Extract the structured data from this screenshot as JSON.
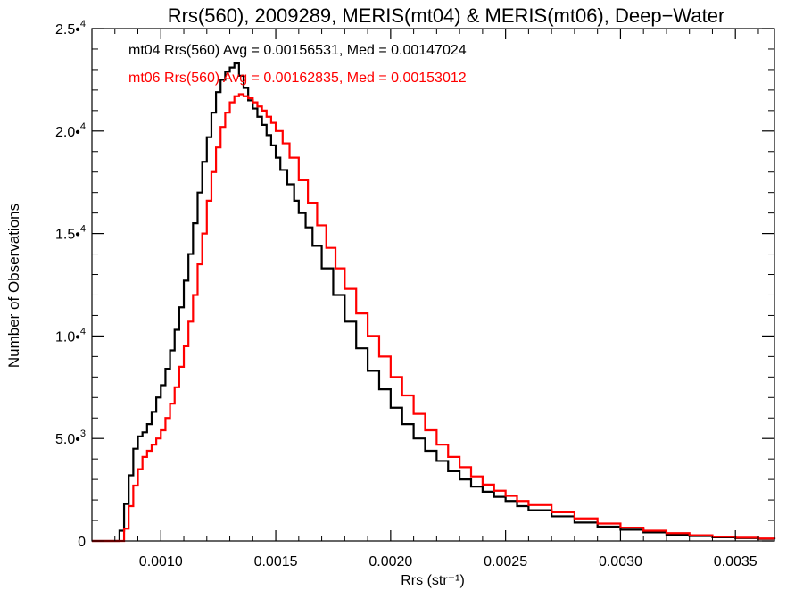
{
  "chart_data": {
    "type": "line",
    "title": "Rrs(560), 2009289, MERIS(mt04) & MERIS(mt06), Deep−Water",
    "xlabel": "Rrs (str⁻¹)",
    "ylabel": "Number of Observations",
    "xlim": [
      0.0007,
      0.00367
    ],
    "ylim": [
      0,
      25000
    ],
    "x_ticks": [
      {
        "value": 0.001,
        "label": "0.0010"
      },
      {
        "value": 0.0015,
        "label": "0.0015"
      },
      {
        "value": 0.002,
        "label": "0.0020"
      },
      {
        "value": 0.0025,
        "label": "0.0025"
      },
      {
        "value": 0.003,
        "label": "0.0030"
      },
      {
        "value": 0.0035,
        "label": "0.0035"
      }
    ],
    "y_ticks": [
      {
        "value": 0,
        "mantissa": "0",
        "exponent": ""
      },
      {
        "value": 5000,
        "mantissa": "5.0•",
        "exponent": "3"
      },
      {
        "value": 10000,
        "mantissa": "1.0•",
        "exponent": "4"
      },
      {
        "value": 15000,
        "mantissa": "1.5•",
        "exponent": "4"
      },
      {
        "value": 20000,
        "mantissa": "2.0•",
        "exponent": "4"
      },
      {
        "value": 25000,
        "mantissa": "2.5•",
        "exponent": "4"
      }
    ],
    "annotations": [
      {
        "text": "mt04 Rrs(560) Avg = 0.00156531, Med = 0.00147024",
        "color": "#000000"
      },
      {
        "text": "mt06 Rrs(560) Avg = 0.00162835, Med = 0.00153012",
        "color": "#ff0000"
      }
    ],
    "series": [
      {
        "color": "#000000",
        "x": [
          0.0007,
          0.0008,
          0.00082,
          0.00084,
          0.00086,
          0.00088,
          0.0009,
          0.00092,
          0.00094,
          0.00096,
          0.00098,
          0.001,
          0.00102,
          0.00104,
          0.00106,
          0.00108,
          0.0011,
          0.00112,
          0.00114,
          0.00116,
          0.00118,
          0.0012,
          0.00122,
          0.00124,
          0.00126,
          0.00128,
          0.0013,
          0.00132,
          0.00134,
          0.00136,
          0.00138,
          0.0014,
          0.00142,
          0.00144,
          0.00146,
          0.00148,
          0.0015,
          0.00152,
          0.00155,
          0.00158,
          0.0016,
          0.00163,
          0.00166,
          0.0017,
          0.00175,
          0.0018,
          0.00185,
          0.0019,
          0.00195,
          0.002,
          0.00205,
          0.0021,
          0.00215,
          0.0022,
          0.00225,
          0.0023,
          0.00235,
          0.0024,
          0.00245,
          0.0025,
          0.00255,
          0.0026,
          0.0027,
          0.0028,
          0.0029,
          0.003,
          0.0031,
          0.0032,
          0.0033,
          0.0034,
          0.0035,
          0.0036,
          0.00367
        ],
        "values": [
          0,
          0,
          500,
          1800,
          3200,
          4500,
          5100,
          5300,
          5700,
          6300,
          7000,
          7600,
          8400,
          9300,
          10300,
          11400,
          12700,
          14000,
          15500,
          17000,
          18500,
          19700,
          20900,
          21900,
          22500,
          22900,
          23100,
          23300,
          22700,
          22100,
          21500,
          21100,
          20700,
          20300,
          19800,
          19300,
          18700,
          18100,
          17400,
          16600,
          16000,
          15300,
          14400,
          13300,
          12000,
          10700,
          9400,
          8300,
          7400,
          6500,
          5700,
          5000,
          4400,
          3900,
          3400,
          3000,
          2650,
          2400,
          2150,
          1950,
          1700,
          1500,
          1200,
          900,
          700,
          550,
          420,
          310,
          240,
          180,
          140,
          100,
          80
        ]
      },
      {
        "color": "#ff0000",
        "x": [
          0.0007,
          0.00082,
          0.00084,
          0.00086,
          0.00088,
          0.0009,
          0.00092,
          0.00094,
          0.00096,
          0.00098,
          0.001,
          0.00102,
          0.00104,
          0.00106,
          0.00108,
          0.0011,
          0.00112,
          0.00114,
          0.00116,
          0.00118,
          0.0012,
          0.00122,
          0.00124,
          0.00126,
          0.00128,
          0.0013,
          0.00132,
          0.00134,
          0.00136,
          0.00138,
          0.0014,
          0.00142,
          0.00144,
          0.00146,
          0.00148,
          0.0015,
          0.00153,
          0.00156,
          0.0016,
          0.00164,
          0.00168,
          0.00172,
          0.00176,
          0.0018,
          0.00185,
          0.0019,
          0.00195,
          0.002,
          0.00205,
          0.0021,
          0.00215,
          0.0022,
          0.00225,
          0.0023,
          0.00235,
          0.0024,
          0.00245,
          0.0025,
          0.00255,
          0.0026,
          0.0027,
          0.0028,
          0.0029,
          0.003,
          0.0031,
          0.0032,
          0.0033,
          0.0034,
          0.0035,
          0.0036,
          0.00367
        ],
        "values": [
          0,
          0,
          600,
          1700,
          2700,
          3500,
          4100,
          4400,
          4700,
          5000,
          5400,
          6000,
          6700,
          7500,
          8500,
          9500,
          10700,
          12000,
          13500,
          15000,
          16600,
          18000,
          19200,
          20200,
          20900,
          21400,
          21700,
          21800,
          21700,
          21600,
          21400,
          21200,
          21000,
          20700,
          20400,
          20000,
          19400,
          18700,
          17600,
          16500,
          15400,
          14300,
          13300,
          12300,
          11100,
          10000,
          9000,
          8000,
          7100,
          6200,
          5400,
          4700,
          4100,
          3600,
          3150,
          2750,
          2450,
          2200,
          1950,
          1750,
          1400,
          1100,
          850,
          650,
          500,
          380,
          280,
          210,
          160,
          120,
          90
        ]
      }
    ]
  }
}
